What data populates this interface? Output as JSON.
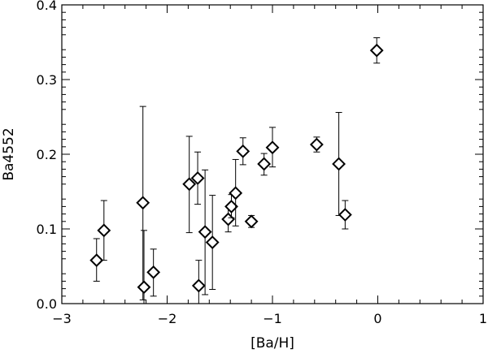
{
  "chart_data": {
    "type": "scatter",
    "title": "",
    "xlabel": "[Ba/H]",
    "ylabel": "Ba4552",
    "xlim": [
      -3,
      1
    ],
    "ylim": [
      0.0,
      0.4
    ],
    "x_ticks": [
      -3,
      -2,
      -1,
      0,
      1
    ],
    "x_tick_labels": [
      "−3",
      "−2",
      "−1",
      "0",
      "1"
    ],
    "y_ticks": [
      0.0,
      0.1,
      0.2,
      0.3,
      0.4
    ],
    "y_tick_labels": [
      "0.0",
      "0.1",
      "0.2",
      "0.3",
      "0.4"
    ],
    "grid": false,
    "marker": "diamond",
    "points": [
      {
        "x": -2.67,
        "y": 0.058,
        "err_low": 0.03,
        "err_high": 0.087
      },
      {
        "x": -2.6,
        "y": 0.098,
        "err_low": 0.058,
        "err_high": 0.138
      },
      {
        "x": -2.23,
        "y": 0.135,
        "err_low": 0.005,
        "err_high": 0.264
      },
      {
        "x": -2.22,
        "y": 0.022,
        "err_low": 0.0,
        "err_high": 0.098
      },
      {
        "x": -2.13,
        "y": 0.042,
        "err_low": 0.01,
        "err_high": 0.073
      },
      {
        "x": -1.79,
        "y": 0.16,
        "err_low": 0.095,
        "err_high": 0.224
      },
      {
        "x": -1.71,
        "y": 0.168,
        "err_low": 0.133,
        "err_high": 0.203
      },
      {
        "x": -1.7,
        "y": 0.024,
        "err_low": 0.0,
        "err_high": 0.058
      },
      {
        "x": -1.64,
        "y": 0.096,
        "err_low": 0.012,
        "err_high": 0.179
      },
      {
        "x": -1.57,
        "y": 0.082,
        "err_low": 0.019,
        "err_high": 0.145
      },
      {
        "x": -1.42,
        "y": 0.113,
        "err_low": 0.096,
        "err_high": 0.13
      },
      {
        "x": -1.39,
        "y": 0.13,
        "err_low": 0.115,
        "err_high": 0.146
      },
      {
        "x": -1.35,
        "y": 0.148,
        "err_low": 0.104,
        "err_high": 0.193
      },
      {
        "x": -1.28,
        "y": 0.204,
        "err_low": 0.186,
        "err_high": 0.222
      },
      {
        "x": -1.2,
        "y": 0.11,
        "err_low": 0.102,
        "err_high": 0.118
      },
      {
        "x": -1.08,
        "y": 0.187,
        "err_low": 0.172,
        "err_high": 0.201
      },
      {
        "x": -1.0,
        "y": 0.209,
        "err_low": 0.183,
        "err_high": 0.236
      },
      {
        "x": -0.58,
        "y": 0.213,
        "err_low": 0.203,
        "err_high": 0.223
      },
      {
        "x": -0.37,
        "y": 0.187,
        "err_low": 0.118,
        "err_high": 0.256
      },
      {
        "x": -0.31,
        "y": 0.119,
        "err_low": 0.1,
        "err_high": 0.138
      },
      {
        "x": -0.01,
        "y": 0.339,
        "err_low": 0.322,
        "err_high": 0.356
      }
    ]
  }
}
